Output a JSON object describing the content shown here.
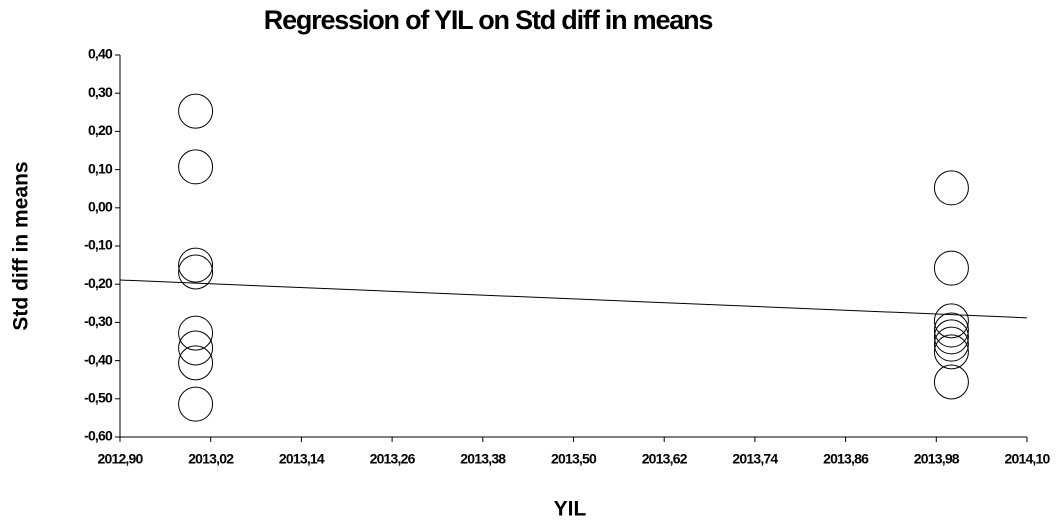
{
  "chart_data": {
    "type": "scatter",
    "title": "Regression of YIL on Std diff in means",
    "xlabel": "YIL",
    "ylabel": "Std diff in means",
    "series": [
      {
        "color": "#000000",
        "x": [
          2013,
          2013,
          2013,
          2013,
          2013,
          2013,
          2013,
          2013,
          2014,
          2014,
          2014,
          2014,
          2014,
          2014,
          2014,
          2014
        ],
        "values": [
          0.253,
          0.107,
          -0.15,
          -0.168,
          -0.328,
          -0.367,
          -0.406,
          -0.514,
          0.052,
          -0.158,
          -0.296,
          -0.32,
          -0.338,
          -0.357,
          -0.377,
          -0.456
        ]
      }
    ],
    "regression": {
      "x": [
        2012.9,
        2014.1
      ],
      "values": [
        -0.189,
        -0.288
      ]
    },
    "xlim": [
      2012.9,
      2014.1
    ],
    "xticks": [
      {
        "value": 2012.9,
        "label": "2012,90"
      },
      {
        "value": 2013.02,
        "label": "2013,02"
      },
      {
        "value": 2013.14,
        "label": "2013,14"
      },
      {
        "value": 2013.26,
        "label": "2013,26"
      },
      {
        "value": 2013.38,
        "label": "2013,38"
      },
      {
        "value": 2013.5,
        "label": "2013,50"
      },
      {
        "value": 2013.62,
        "label": "2013,62"
      },
      {
        "value": 2013.74,
        "label": "2013,74"
      },
      {
        "value": 2013.86,
        "label": "2013,86"
      },
      {
        "value": 2013.98,
        "label": "2013,98"
      },
      {
        "value": 2014.1,
        "label": "2014,10"
      }
    ],
    "ylim": [
      -0.6,
      0.4
    ],
    "yticks": [
      {
        "value": 0.4,
        "label": "0,40"
      },
      {
        "value": 0.3,
        "label": "0,30"
      },
      {
        "value": 0.2,
        "label": "0,20"
      },
      {
        "value": 0.1,
        "label": "0,10"
      },
      {
        "value": 0,
        "label": "0,00"
      },
      {
        "value": -0.1,
        "label": "-0,10"
      },
      {
        "value": -0.2,
        "label": "-0,20"
      },
      {
        "value": -0.3,
        "label": "-0,30"
      },
      {
        "value": -0.4,
        "label": "-0,40"
      },
      {
        "value": -0.5,
        "label": "-0,50"
      },
      {
        "value": -0.6,
        "label": "-0,60"
      }
    ]
  }
}
